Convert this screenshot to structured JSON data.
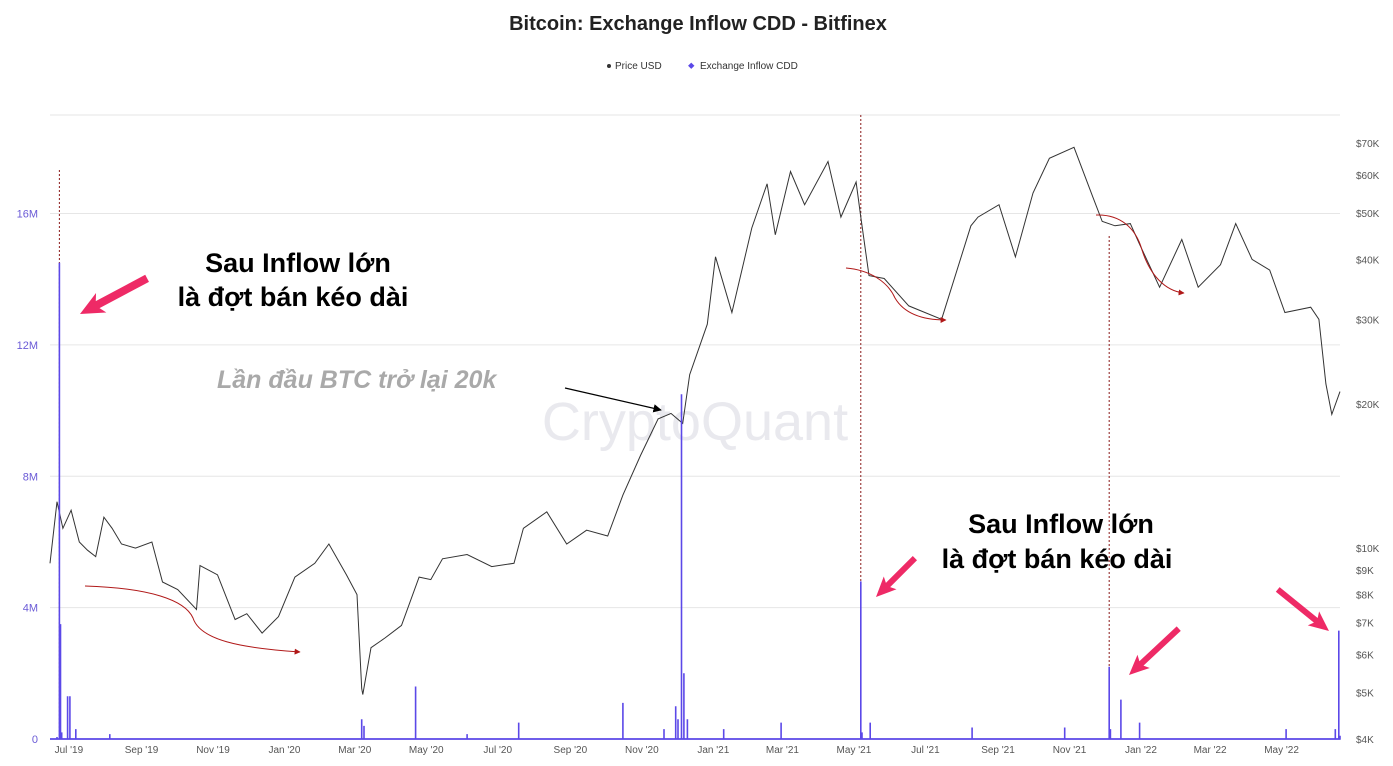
{
  "colors": {
    "price_line": "#333333",
    "inflow": "#5b48e8",
    "grid": "#e6e6e6",
    "annotation_arrow": "#ee2a66",
    "curve_arrow": "#b01818",
    "marker_line": "#8b1a1a"
  },
  "watermark": "CryptoQuant",
  "annotations": {
    "note_left_1": "Sau Inflow lớn",
    "note_left_2": "là đợt bán kéo dài",
    "note_right_1": "Sau Inflow lớn",
    "note_right_2": "là đợt bán kéo dài",
    "note_grey": "Lần đầu BTC trở lại 20k"
  },
  "chart_data": {
    "type": "line",
    "title": "Bitcoin: Exchange Inflow CDD - Bitfinex",
    "legend": [
      "Price USD",
      "Exchange Inflow CDD"
    ],
    "legend_position": "top-center",
    "grid": true,
    "x_range": [
      "2019-06-20",
      "2022-06-25"
    ],
    "x_tick_labels": [
      "Jul '19",
      "Sep '19",
      "Nov '19",
      "Jan '20",
      "Mar '20",
      "May '20",
      "Jul '20",
      "Sep '20",
      "Nov '20",
      "Jan '21",
      "Mar '21",
      "May '21",
      "Jul '21",
      "Sep '21",
      "Nov '21",
      "Jan '22",
      "Mar '22",
      "May '22"
    ],
    "x_tick_dates": [
      "2019-07-01",
      "2019-09-01",
      "2019-11-01",
      "2020-01-01",
      "2020-03-01",
      "2020-05-01",
      "2020-07-01",
      "2020-09-01",
      "2020-11-01",
      "2021-01-01",
      "2021-03-01",
      "2021-05-01",
      "2021-07-01",
      "2021-09-01",
      "2021-11-01",
      "2022-01-01",
      "2022-03-01",
      "2022-05-01"
    ],
    "y_left_ticks": [
      0,
      4000000,
      8000000,
      12000000,
      16000000
    ],
    "y_left_labels": [
      "0",
      "4M",
      "8M",
      "12M",
      "16M"
    ],
    "y_left_range": [
      0,
      19000000
    ],
    "y_right_scale": "log",
    "y_right_range": [
      4000,
      80000
    ],
    "y_right_ticks": [
      4000,
      5000,
      6000,
      7000,
      8000,
      9000,
      10000,
      20000,
      30000,
      40000,
      50000,
      60000,
      70000
    ],
    "y_right_labels": [
      "$4K",
      "$5K",
      "$6K",
      "$7K",
      "$8K",
      "$9K",
      "$10K",
      "$20K",
      "$30K",
      "$40K",
      "$50K",
      "$60K",
      "$70K"
    ],
    "series": [
      {
        "name": "Price USD",
        "axis": "right",
        "points": [
          [
            "2019-06-20",
            9300
          ],
          [
            "2019-06-26",
            12500
          ],
          [
            "2019-07-01",
            11000
          ],
          [
            "2019-07-08",
            12000
          ],
          [
            "2019-07-15",
            10300
          ],
          [
            "2019-07-22",
            9900
          ],
          [
            "2019-07-29",
            9600
          ],
          [
            "2019-08-05",
            11600
          ],
          [
            "2019-08-12",
            11000
          ],
          [
            "2019-08-20",
            10200
          ],
          [
            "2019-09-01",
            10000
          ],
          [
            "2019-09-15",
            10300
          ],
          [
            "2019-09-24",
            8500
          ],
          [
            "2019-10-07",
            8200
          ],
          [
            "2019-10-23",
            7450
          ],
          [
            "2019-10-26",
            9200
          ],
          [
            "2019-11-10",
            8800
          ],
          [
            "2019-11-25",
            7100
          ],
          [
            "2019-12-05",
            7300
          ],
          [
            "2019-12-18",
            6650
          ],
          [
            "2020-01-01",
            7200
          ],
          [
            "2020-01-15",
            8700
          ],
          [
            "2020-02-01",
            9300
          ],
          [
            "2020-02-13",
            10200
          ],
          [
            "2020-02-28",
            8800
          ],
          [
            "2020-03-08",
            8000
          ],
          [
            "2020-03-12",
            5100
          ],
          [
            "2020-03-13",
            4950
          ],
          [
            "2020-03-20",
            6200
          ],
          [
            "2020-04-01",
            6500
          ],
          [
            "2020-04-15",
            6900
          ],
          [
            "2020-04-30",
            8700
          ],
          [
            "2020-05-10",
            8600
          ],
          [
            "2020-05-20",
            9500
          ],
          [
            "2020-06-10",
            9700
          ],
          [
            "2020-07-01",
            9150
          ],
          [
            "2020-07-20",
            9300
          ],
          [
            "2020-07-28",
            11000
          ],
          [
            "2020-08-17",
            11900
          ],
          [
            "2020-09-03",
            10200
          ],
          [
            "2020-09-20",
            10900
          ],
          [
            "2020-10-08",
            10600
          ],
          [
            "2020-10-21",
            12900
          ],
          [
            "2020-11-05",
            15600
          ],
          [
            "2020-11-20",
            18600
          ],
          [
            "2020-12-01",
            19100
          ],
          [
            "2020-12-11",
            18200
          ],
          [
            "2020-12-17",
            23000
          ],
          [
            "2021-01-01",
            29300
          ],
          [
            "2021-01-08",
            40500
          ],
          [
            "2021-01-22",
            31000
          ],
          [
            "2021-02-08",
            46500
          ],
          [
            "2021-02-21",
            57500
          ],
          [
            "2021-02-28",
            45000
          ],
          [
            "2021-03-13",
            61000
          ],
          [
            "2021-03-25",
            52000
          ],
          [
            "2021-04-14",
            64000
          ],
          [
            "2021-04-25",
            49000
          ],
          [
            "2021-05-08",
            58000
          ],
          [
            "2021-05-12",
            49000
          ],
          [
            "2021-05-19",
            37000
          ],
          [
            "2021-06-01",
            36500
          ],
          [
            "2021-06-22",
            32000
          ],
          [
            "2021-07-20",
            30000
          ],
          [
            "2021-08-14",
            47000
          ],
          [
            "2021-08-20",
            49000
          ],
          [
            "2021-09-07",
            52000
          ],
          [
            "2021-09-21",
            40500
          ],
          [
            "2021-10-06",
            55000
          ],
          [
            "2021-10-20",
            65000
          ],
          [
            "2021-11-10",
            68500
          ],
          [
            "2021-11-26",
            54000
          ],
          [
            "2021-12-04",
            48000
          ],
          [
            "2021-12-15",
            47000
          ],
          [
            "2021-12-28",
            47500
          ],
          [
            "2022-01-05",
            43000
          ],
          [
            "2022-01-22",
            35000
          ],
          [
            "2022-02-10",
            44000
          ],
          [
            "2022-02-24",
            35000
          ],
          [
            "2022-03-15",
            39000
          ],
          [
            "2022-03-28",
            47500
          ],
          [
            "2022-04-11",
            40000
          ],
          [
            "2022-04-26",
            38000
          ],
          [
            "2022-05-09",
            31000
          ],
          [
            "2022-05-31",
            31800
          ],
          [
            "2022-06-07",
            30000
          ],
          [
            "2022-06-13",
            22000
          ],
          [
            "2022-06-18",
            19000
          ],
          [
            "2022-06-25",
            21200
          ]
        ]
      },
      {
        "name": "Exchange Inflow CDD",
        "axis": "left",
        "points": [
          [
            "2019-06-20",
            0
          ],
          [
            "2019-06-26",
            60000
          ],
          [
            "2019-06-28",
            14500000
          ],
          [
            "2019-06-29",
            3500000
          ],
          [
            "2019-06-30",
            200000
          ],
          [
            "2019-07-05",
            1300000
          ],
          [
            "2019-07-07",
            1300000
          ],
          [
            "2019-07-12",
            300000
          ],
          [
            "2019-08-10",
            150000
          ],
          [
            "2020-03-12",
            600000
          ],
          [
            "2020-03-14",
            400000
          ],
          [
            "2020-04-27",
            1600000
          ],
          [
            "2020-06-10",
            150000
          ],
          [
            "2020-07-24",
            500000
          ],
          [
            "2020-10-21",
            1100000
          ],
          [
            "2020-11-25",
            300000
          ],
          [
            "2020-12-05",
            1000000
          ],
          [
            "2020-12-07",
            600000
          ],
          [
            "2020-12-10",
            10500000
          ],
          [
            "2020-12-12",
            2000000
          ],
          [
            "2020-12-15",
            600000
          ],
          [
            "2021-01-15",
            300000
          ],
          [
            "2021-03-05",
            500000
          ],
          [
            "2021-05-10",
            0
          ],
          [
            "2021-05-12",
            4800000
          ],
          [
            "2021-05-13",
            200000
          ],
          [
            "2021-05-20",
            500000
          ],
          [
            "2021-08-15",
            350000
          ],
          [
            "2021-11-02",
            350000
          ],
          [
            "2021-12-10",
            2200000
          ],
          [
            "2021-12-11",
            300000
          ],
          [
            "2021-12-20",
            1200000
          ],
          [
            "2022-01-05",
            500000
          ],
          [
            "2022-05-10",
            300000
          ],
          [
            "2022-06-21",
            300000
          ],
          [
            "2022-06-24",
            3300000
          ],
          [
            "2022-06-25",
            100000
          ]
        ]
      }
    ]
  }
}
